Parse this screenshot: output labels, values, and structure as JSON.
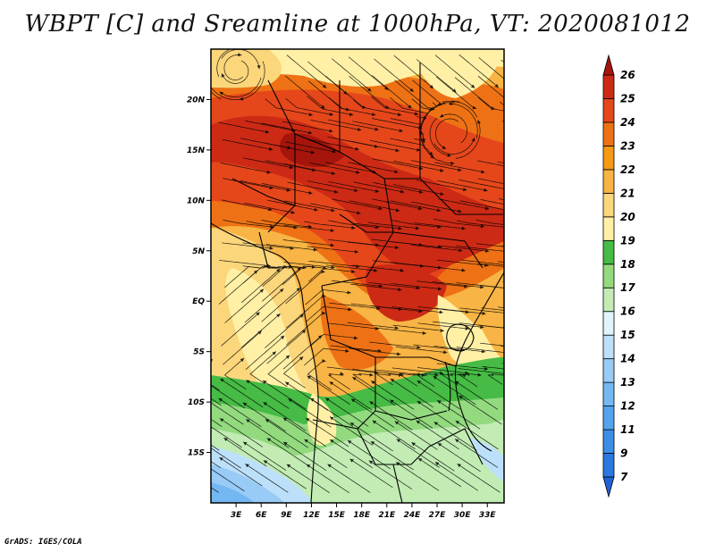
{
  "title": "WBPT [C] and Sreamline at 1000hPa, VT: 2020081012",
  "credit": "GrADS: IGES/COLA",
  "map": {
    "variable": "wet-bulb potential temperature",
    "level": "1000hPa",
    "valid_time": "2020081012",
    "lon_range": [
      0,
      35
    ],
    "lat_range": [
      -20,
      25
    ],
    "lat_ticks": [
      {
        "value": 20,
        "label": "20N"
      },
      {
        "value": 15,
        "label": "15N"
      },
      {
        "value": 10,
        "label": "10N"
      },
      {
        "value": 5,
        "label": "5N"
      },
      {
        "value": 0,
        "label": "EQ"
      },
      {
        "value": -5,
        "label": "5S"
      },
      {
        "value": -10,
        "label": "10S"
      },
      {
        "value": -15,
        "label": "15S"
      }
    ],
    "lon_ticks": [
      {
        "value": 3,
        "label": "3E"
      },
      {
        "value": 6,
        "label": "6E"
      },
      {
        "value": 9,
        "label": "9E"
      },
      {
        "value": 12,
        "label": "12E"
      },
      {
        "value": 15,
        "label": "15E"
      },
      {
        "value": 18,
        "label": "18E"
      },
      {
        "value": 21,
        "label": "21E"
      },
      {
        "value": 24,
        "label": "24E"
      },
      {
        "value": 27,
        "label": "27E"
      },
      {
        "value": 30,
        "label": "30E"
      },
      {
        "value": 33,
        "label": "33E"
      }
    ]
  },
  "colorbar": {
    "bins": [
      {
        "label": "",
        "color": "#1f63d6"
      },
      {
        "label": "7",
        "color": "#2d78e0"
      },
      {
        "label": "9",
        "color": "#3d8ee8"
      },
      {
        "label": "11",
        "color": "#55a3ee"
      },
      {
        "label": "12",
        "color": "#74b8f3"
      },
      {
        "label": "13",
        "color": "#98cbf6"
      },
      {
        "label": "14",
        "color": "#bde0fa"
      },
      {
        "label": "15",
        "color": "#e2f4fb"
      },
      {
        "label": "16",
        "color": "#c2ecb4"
      },
      {
        "label": "17",
        "color": "#93da7f"
      },
      {
        "label": "18",
        "color": "#46bb45"
      },
      {
        "label": "19",
        "color": "#fff0a6"
      },
      {
        "label": "20",
        "color": "#fbd67b"
      },
      {
        "label": "21",
        "color": "#f8b444"
      },
      {
        "label": "22",
        "color": "#f59a14"
      },
      {
        "label": "23",
        "color": "#ee7215"
      },
      {
        "label": "24",
        "color": "#e5471b"
      },
      {
        "label": "25",
        "color": "#cc2a15"
      },
      {
        "label": "26",
        "color": "#a5150c"
      }
    ]
  }
}
